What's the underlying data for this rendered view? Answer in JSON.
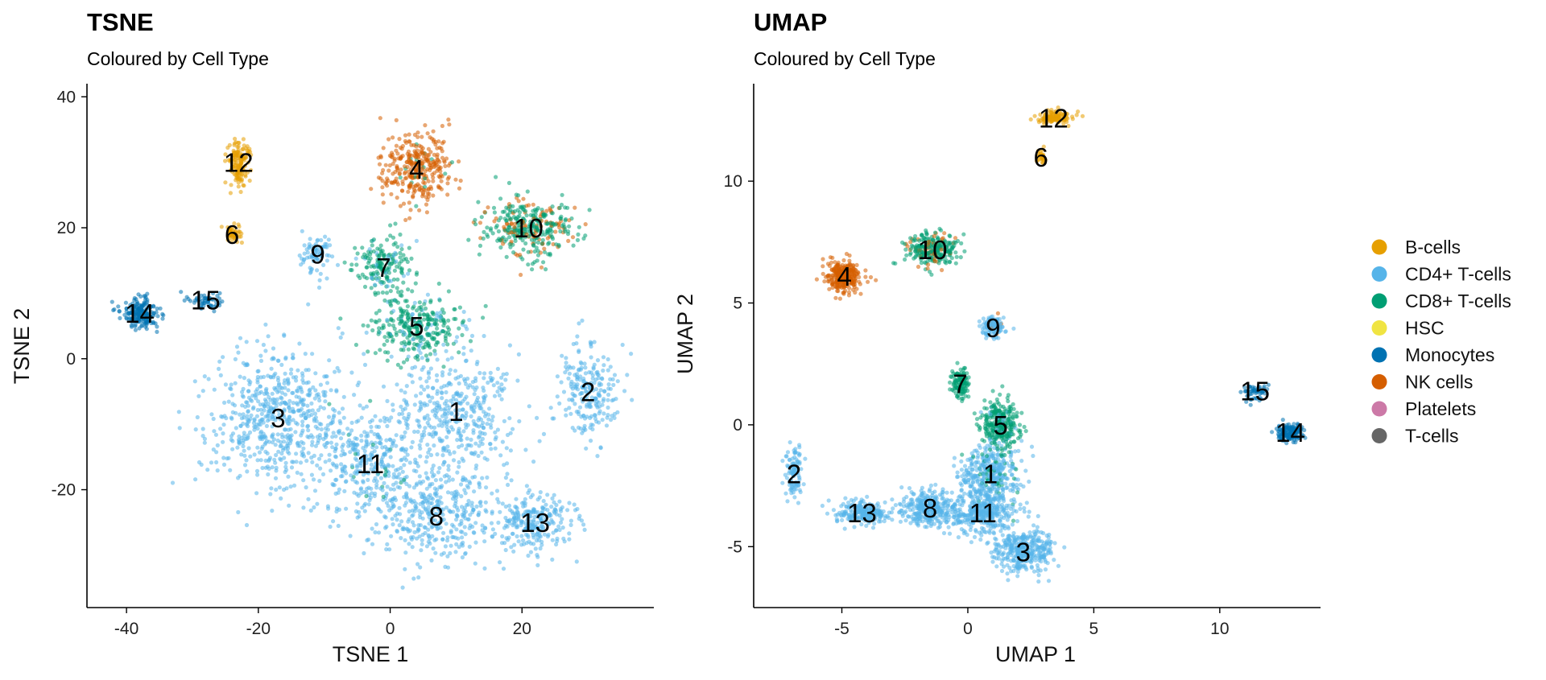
{
  "legend": {
    "items": [
      {
        "label": "B-cells",
        "color": "#E69F00"
      },
      {
        "label": "CD4+ T-cells",
        "color": "#56B4E9"
      },
      {
        "label": "CD8+ T-cells",
        "color": "#009E73"
      },
      {
        "label": "HSC",
        "color": "#F0E442"
      },
      {
        "label": "Monocytes",
        "color": "#0072B2"
      },
      {
        "label": "NK cells",
        "color": "#D55E00"
      },
      {
        "label": "Platelets",
        "color": "#CC79A7"
      },
      {
        "label": "T-cells",
        "color": "#666666"
      }
    ]
  },
  "chart_data": [
    {
      "type": "scatter",
      "title": "TSNE",
      "subtitle": "Coloured by Cell Type",
      "xlabel": "TSNE 1",
      "ylabel": "TSNE 2",
      "xlim": [
        -46,
        40
      ],
      "ylim": [
        -38,
        42
      ],
      "xticks": [
        -40,
        -20,
        0,
        20
      ],
      "yticks": [
        -20,
        0,
        20,
        40
      ],
      "grid": false,
      "legend": "right",
      "clusters": [
        {
          "label": "1",
          "x": 10,
          "y": -8,
          "type": "CD4+ T-cells"
        },
        {
          "label": "2",
          "x": 30,
          "y": -5,
          "type": "CD4+ T-cells"
        },
        {
          "label": "3",
          "x": -17,
          "y": -9,
          "type": "CD4+ T-cells"
        },
        {
          "label": "4",
          "x": 4,
          "y": 29,
          "type": "NK cells"
        },
        {
          "label": "5",
          "x": 4,
          "y": 5,
          "type": "CD8+ T-cells"
        },
        {
          "label": "6",
          "x": -24,
          "y": 19,
          "type": "B-cells"
        },
        {
          "label": "7",
          "x": -1,
          "y": 14,
          "type": "CD8+ T-cells"
        },
        {
          "label": "8",
          "x": 7,
          "y": -24,
          "type": "CD4+ T-cells"
        },
        {
          "label": "9",
          "x": -11,
          "y": 16,
          "type": "CD4+ T-cells"
        },
        {
          "label": "10",
          "x": 21,
          "y": 20,
          "type": "CD8+ T-cells"
        },
        {
          "label": "11",
          "x": -3,
          "y": -16,
          "type": "CD4+ T-cells"
        },
        {
          "label": "12",
          "x": -23,
          "y": 30,
          "type": "B-cells"
        },
        {
          "label": "13",
          "x": 22,
          "y": -25,
          "type": "CD4+ T-cells"
        },
        {
          "label": "14",
          "x": -38,
          "y": 7,
          "type": "Monocytes"
        },
        {
          "label": "15",
          "x": -28,
          "y": 9,
          "type": "Monocytes"
        }
      ]
    },
    {
      "type": "scatter",
      "title": "UMAP",
      "subtitle": "Coloured by Cell Type",
      "xlabel": "UMAP 1",
      "ylabel": "UMAP 2",
      "xlim": [
        -8.5,
        14
      ],
      "ylim": [
        -7.5,
        14
      ],
      "xticks": [
        -5,
        0,
        5,
        10
      ],
      "yticks": [
        -5,
        0,
        5,
        10
      ],
      "grid": false,
      "legend": "right",
      "clusters": [
        {
          "label": "1",
          "x": 0.9,
          "y": -2,
          "type": "CD4+ T-cells"
        },
        {
          "label": "2",
          "x": -6.9,
          "y": -2,
          "type": "CD4+ T-cells"
        },
        {
          "label": "3",
          "x": 2.2,
          "y": -5.2,
          "type": "CD4+ T-cells"
        },
        {
          "label": "4",
          "x": -4.9,
          "y": 6.1,
          "type": "NK cells"
        },
        {
          "label": "5",
          "x": 1.3,
          "y": 0,
          "type": "CD8+ T-cells"
        },
        {
          "label": "6",
          "x": 2.9,
          "y": 11,
          "type": "B-cells"
        },
        {
          "label": "7",
          "x": -0.3,
          "y": 1.7,
          "type": "CD8+ T-cells"
        },
        {
          "label": "8",
          "x": -1.5,
          "y": -3.4,
          "type": "CD4+ T-cells"
        },
        {
          "label": "9",
          "x": 1,
          "y": 4,
          "type": "CD4+ T-cells"
        },
        {
          "label": "10",
          "x": -1.4,
          "y": 7.2,
          "type": "CD8+ T-cells"
        },
        {
          "label": "11",
          "x": 0.6,
          "y": -3.6,
          "type": "CD4+ T-cells"
        },
        {
          "label": "12",
          "x": 3.4,
          "y": 12.6,
          "type": "B-cells"
        },
        {
          "label": "13",
          "x": -4.2,
          "y": -3.6,
          "type": "CD4+ T-cells"
        },
        {
          "label": "14",
          "x": 12.8,
          "y": -0.3,
          "type": "Monocytes"
        },
        {
          "label": "15",
          "x": 11.4,
          "y": 1.4,
          "type": "Monocytes"
        }
      ]
    }
  ]
}
